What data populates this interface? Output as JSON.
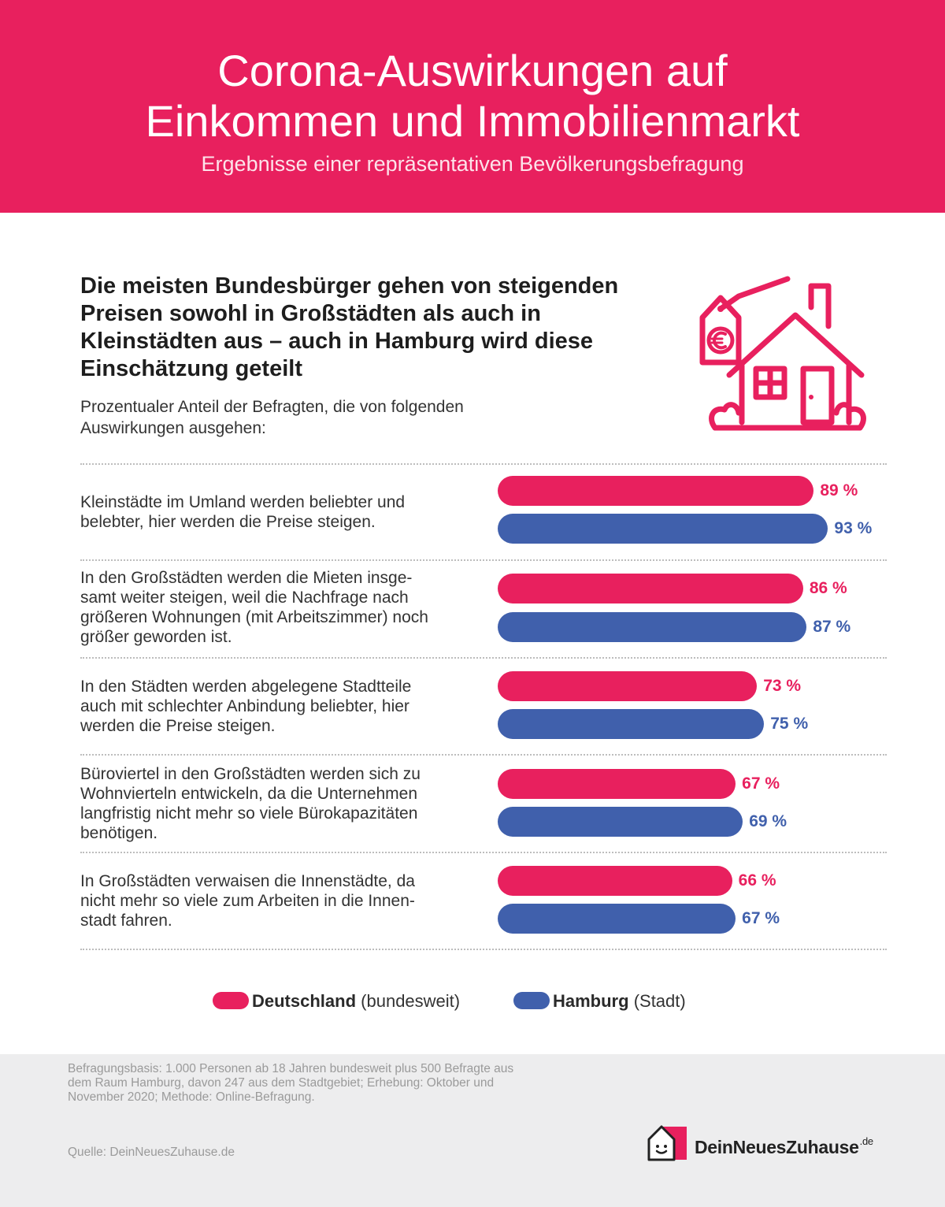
{
  "header": {
    "title_line1": "Corona-Auswirkungen auf",
    "title_line2": "Einkommen und Immobilienmarkt",
    "subtitle": "Ergebnisse einer repräsentativen Bevölkerungsbefragung"
  },
  "headline": {
    "line1": "Die meisten Bundesbürger gehen von steigenden",
    "line2": "Preisen sowohl in Großstädten als auch in",
    "line3": "Kleinstädten aus – auch in Hamburg wird diese",
    "line4": "Einschätzung geteilt"
  },
  "intro": {
    "line1": "Prozentualer Anteil der Befragten, die von folgenden",
    "line2": "Auswirkungen ausgehen:"
  },
  "icons": {
    "house": "house-with-euro-tag-icon",
    "logo": "smiling-house-logo-icon"
  },
  "colors": {
    "brand": "#e8205e",
    "deutschland": "#e8205e",
    "hamburg": "#4060ac",
    "footer_bg": "#ededee"
  },
  "chart_data": {
    "type": "bar",
    "orientation": "horizontal",
    "unit": "%",
    "categories": [
      [
        "Kleinstädte im Umland werden beliebter und",
        "belebter, hier werden die Preise steigen."
      ],
      [
        "In den Großstädten werden die Mieten insge-",
        "samt weiter steigen, weil die Nachfrage nach",
        "größeren Wohnungen (mit Arbeitszimmer) noch",
        "größer geworden ist."
      ],
      [
        "In den Städten werden abgelegene Stadtteile",
        "auch mit schlechter Anbindung beliebter, hier",
        "werden die Preise steigen."
      ],
      [
        "Büroviertel in den Großstädten werden sich zu",
        "Wohnvierteln entwickeln, da die Unternehmen",
        "langfristig nicht mehr so viele Bürokapazitäten",
        "benötigen."
      ],
      [
        "In Großstädten verwaisen die Innenstädte, da",
        "nicht mehr so viele zum Arbeiten in die Innen-",
        "stadt fahren."
      ]
    ],
    "series": [
      {
        "name": "Deutschland",
        "qualifier": "(bundesweit)",
        "values": [
          89,
          86,
          73,
          67,
          66
        ],
        "labels": [
          "89 %",
          "86 %",
          "73 %",
          "67 %",
          "66 %"
        ]
      },
      {
        "name": "Hamburg",
        "qualifier": "(Stadt)",
        "values": [
          93,
          87,
          75,
          69,
          67
        ],
        "labels": [
          "93 %",
          "87 %",
          "75 %",
          "69 %",
          "67 %"
        ]
      }
    ],
    "xlim": [
      0,
      100
    ],
    "legend_position": "bottom-center"
  },
  "footer": {
    "note_line1": "Befragungsbasis: 1.000 Personen ab 18 Jahren bundesweit plus 500 Befragte aus",
    "note_line2": "dem Raum Hamburg, davon 247 aus dem Stadtgebiet; Erhebung: Oktober und",
    "note_line3": "November 2020; Methode: Online-Befragung.",
    "source": "Quelle: DeinNeuesZuhause.de",
    "brand_name": "DeinNeuesZuhause",
    "brand_tld": ".de"
  }
}
